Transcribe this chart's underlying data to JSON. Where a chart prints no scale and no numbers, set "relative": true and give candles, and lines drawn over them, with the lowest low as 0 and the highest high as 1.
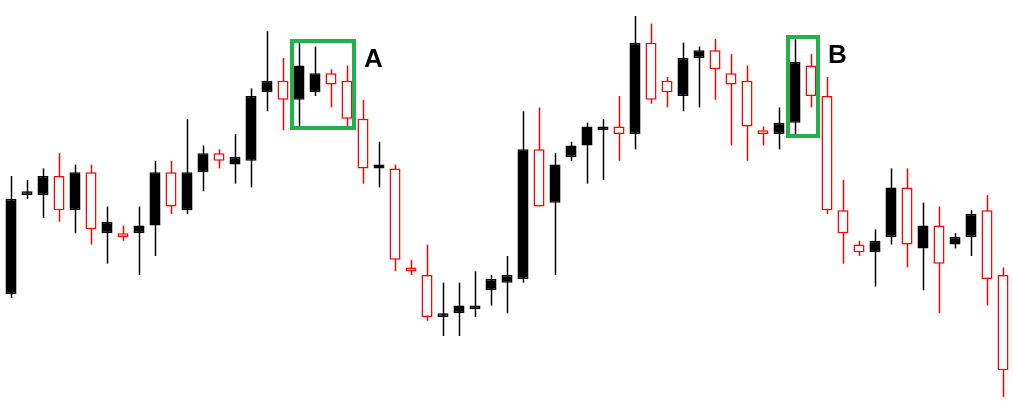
{
  "chart_data": {
    "type": "candlestick",
    "relative": true,
    "categories": [
      null,
      null,
      null,
      null,
      null,
      null,
      null,
      null,
      null,
      null,
      null,
      null,
      null,
      null,
      null,
      null,
      null,
      null,
      null,
      null,
      null,
      null,
      null,
      null,
      null,
      null,
      null,
      null,
      null,
      null,
      null,
      null,
      null,
      null,
      null,
      null,
      null,
      null,
      null,
      null,
      null,
      null,
      null,
      null,
      null,
      null,
      null,
      null,
      null,
      null,
      null,
      null,
      null,
      null,
      null,
      null,
      null,
      null,
      null,
      null,
      null,
      null,
      null
    ],
    "ohlc": [
      [
        0.27,
        0.58,
        0.26,
        0.52
      ],
      [
        0.53,
        0.57,
        0.52,
        0.54
      ],
      [
        0.53,
        0.6,
        0.47,
        0.58
      ],
      [
        0.58,
        0.64,
        0.46,
        0.49
      ],
      [
        0.49,
        0.61,
        0.43,
        0.59
      ],
      [
        0.59,
        0.61,
        0.4,
        0.44
      ],
      [
        0.43,
        0.5,
        0.35,
        0.46
      ],
      [
        0.43,
        0.45,
        0.41,
        0.42
      ],
      [
        0.43,
        0.5,
        0.32,
        0.45
      ],
      [
        0.45,
        0.62,
        0.37,
        0.59
      ],
      [
        0.59,
        0.62,
        0.48,
        0.5
      ],
      [
        0.49,
        0.73,
        0.48,
        0.59
      ],
      [
        0.59,
        0.66,
        0.54,
        0.64
      ],
      [
        0.64,
        0.65,
        0.6,
        0.62
      ],
      [
        0.61,
        0.69,
        0.56,
        0.63
      ],
      [
        0.62,
        0.81,
        0.55,
        0.79
      ],
      [
        0.8,
        0.96,
        0.75,
        0.83
      ],
      [
        0.83,
        0.89,
        0.7,
        0.78
      ],
      [
        0.78,
        0.93,
        0.71,
        0.87
      ],
      [
        0.8,
        0.92,
        0.79,
        0.85
      ],
      [
        0.85,
        0.86,
        0.76,
        0.82
      ],
      [
        0.83,
        0.87,
        0.71,
        0.73
      ],
      [
        0.73,
        0.78,
        0.56,
        0.6
      ],
      [
        0.6,
        0.67,
        0.55,
        0.61
      ],
      [
        0.6,
        0.61,
        0.33,
        0.36
      ],
      [
        0.34,
        0.36,
        0.32,
        0.33
      ],
      [
        0.32,
        0.4,
        0.2,
        0.21
      ],
      [
        0.21,
        0.3,
        0.16,
        0.22
      ],
      [
        0.22,
        0.3,
        0.16,
        0.24
      ],
      [
        0.23,
        0.33,
        0.21,
        0.24
      ],
      [
        0.28,
        0.32,
        0.24,
        0.31
      ],
      [
        0.3,
        0.37,
        0.22,
        0.32
      ],
      [
        0.31,
        0.75,
        0.3,
        0.65
      ],
      [
        0.65,
        0.76,
        0.5,
        0.5
      ],
      [
        0.51,
        0.64,
        0.32,
        0.61
      ],
      [
        0.63,
        0.67,
        0.62,
        0.66
      ],
      [
        0.66,
        0.72,
        0.56,
        0.71
      ],
      [
        0.7,
        0.73,
        0.57,
        0.71
      ],
      [
        0.71,
        0.79,
        0.62,
        0.69
      ],
      [
        0.69,
        1.0,
        0.65,
        0.93
      ],
      [
        0.93,
        0.98,
        0.77,
        0.78
      ],
      [
        0.83,
        0.84,
        0.76,
        0.8
      ],
      [
        0.79,
        0.93,
        0.75,
        0.89
      ],
      [
        0.89,
        0.92,
        0.76,
        0.91
      ],
      [
        0.91,
        0.94,
        0.78,
        0.86
      ],
      [
        0.85,
        0.9,
        0.66,
        0.82
      ],
      [
        0.83,
        0.87,
        0.62,
        0.71
      ],
      [
        0.7,
        0.71,
        0.66,
        0.69
      ],
      [
        0.69,
        0.76,
        0.65,
        0.72
      ],
      [
        0.72,
        0.94,
        0.69,
        0.88
      ],
      [
        0.87,
        0.9,
        0.76,
        0.79
      ],
      [
        0.79,
        0.84,
        0.48,
        0.49
      ],
      [
        0.49,
        0.57,
        0.35,
        0.43
      ],
      [
        0.4,
        0.41,
        0.37,
        0.38
      ],
      [
        0.38,
        0.44,
        0.29,
        0.41
      ],
      [
        0.42,
        0.6,
        0.4,
        0.55
      ],
      [
        0.55,
        0.6,
        0.34,
        0.4
      ],
      [
        0.39,
        0.51,
        0.28,
        0.45
      ],
      [
        0.45,
        0.5,
        0.22,
        0.35
      ],
      [
        0.4,
        0.43,
        0.39,
        0.42
      ],
      [
        0.42,
        0.49,
        0.37,
        0.48
      ],
      [
        0.49,
        0.53,
        0.24,
        0.31
      ],
      [
        0.32,
        0.34,
        0.0,
        0.07
      ]
    ],
    "colors": [
      "#000000",
      "#000000",
      "#000000",
      "#ff0000",
      "#000000",
      "#ff0000",
      "#000000",
      "#ff0000",
      "#000000",
      "#000000",
      "#ff0000",
      "#000000",
      "#000000",
      "#ff0000",
      "#000000",
      "#000000",
      "#000000",
      "#ff0000",
      "#000000",
      "#000000",
      "#ff0000",
      "#ff0000",
      "#ff0000",
      "#000000",
      "#ff0000",
      "#ff0000",
      "#ff0000",
      "#000000",
      "#000000",
      "#000000",
      "#000000",
      "#000000",
      "#000000",
      "#ff0000",
      "#000000",
      "#000000",
      "#000000",
      "#000000",
      "#ff0000",
      "#000000",
      "#ff0000",
      "#ff0000",
      "#000000",
      "#000000",
      "#ff0000",
      "#ff0000",
      "#ff0000",
      "#ff0000",
      "#000000",
      "#000000",
      "#ff0000",
      "#ff0000",
      "#ff0000",
      "#ff0000",
      "#000000",
      "#000000",
      "#ff0000",
      "#000000",
      "#ff0000",
      "#000000",
      "#000000",
      "#ff0000",
      "#ff0000"
    ],
    "annotations": [
      "A",
      "B"
    ]
  }
}
